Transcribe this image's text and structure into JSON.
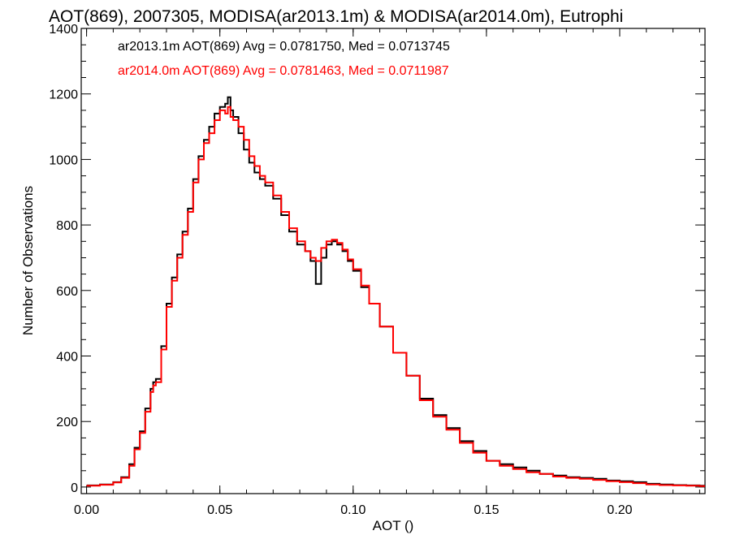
{
  "chart_data": {
    "type": "line",
    "step": true,
    "title": "AOT(869), 2007305, MODISA(ar2013.1m) & MODISA(ar2014.0m), Eutrophi",
    "xlabel": "AOT ()",
    "ylabel": "Number of Observations",
    "xlim": [
      -0.002,
      0.232
    ],
    "ylim": [
      -20,
      1400
    ],
    "xticks": [
      0.0,
      0.05,
      0.1,
      0.15,
      0.2
    ],
    "xtick_labels": [
      "0.00",
      "0.05",
      "0.10",
      "0.15",
      "0.20"
    ],
    "yticks": [
      0,
      200,
      400,
      600,
      800,
      1000,
      1200,
      1400
    ],
    "ytick_labels": [
      "0",
      "200",
      "400",
      "600",
      "800",
      "1000",
      "1200",
      "1400"
    ],
    "grid": false,
    "legend": "top-left",
    "series": [
      {
        "name": "ar2013.1m AOT(869) Avg = 0.0781750, Med = 0.0713745",
        "color": "#000000",
        "x": [
          0.0,
          0.005,
          0.01,
          0.013,
          0.016,
          0.018,
          0.02,
          0.022,
          0.024,
          0.025,
          0.026,
          0.028,
          0.03,
          0.032,
          0.034,
          0.036,
          0.038,
          0.04,
          0.042,
          0.044,
          0.046,
          0.048,
          0.05,
          0.052,
          0.053,
          0.054,
          0.055,
          0.057,
          0.059,
          0.061,
          0.063,
          0.065,
          0.067,
          0.07,
          0.073,
          0.076,
          0.079,
          0.082,
          0.084,
          0.086,
          0.088,
          0.09,
          0.092,
          0.094,
          0.096,
          0.098,
          0.1,
          0.103,
          0.106,
          0.11,
          0.115,
          0.12,
          0.125,
          0.13,
          0.135,
          0.14,
          0.145,
          0.15,
          0.155,
          0.16,
          0.165,
          0.17,
          0.175,
          0.18,
          0.185,
          0.19,
          0.195,
          0.2,
          0.205,
          0.21,
          0.215,
          0.22,
          0.225,
          0.23
        ],
        "y": [
          5,
          8,
          15,
          30,
          70,
          120,
          170,
          240,
          300,
          320,
          330,
          430,
          560,
          640,
          710,
          780,
          850,
          940,
          1010,
          1060,
          1100,
          1140,
          1160,
          1170,
          1190,
          1150,
          1130,
          1080,
          1030,
          990,
          960,
          940,
          920,
          880,
          830,
          780,
          740,
          720,
          690,
          620,
          700,
          740,
          750,
          740,
          720,
          690,
          660,
          610,
          560,
          490,
          410,
          340,
          270,
          220,
          180,
          140,
          110,
          80,
          70,
          60,
          50,
          40,
          35,
          30,
          28,
          25,
          20,
          18,
          15,
          10,
          8,
          6,
          5,
          4
        ]
      },
      {
        "name": "ar2014.0m AOT(869) Avg = 0.0781463, Med = 0.0711987",
        "color": "#ff0000",
        "x": [
          0.0,
          0.005,
          0.01,
          0.013,
          0.016,
          0.018,
          0.02,
          0.022,
          0.024,
          0.025,
          0.026,
          0.028,
          0.03,
          0.032,
          0.034,
          0.036,
          0.038,
          0.04,
          0.042,
          0.044,
          0.046,
          0.048,
          0.05,
          0.052,
          0.053,
          0.054,
          0.055,
          0.057,
          0.059,
          0.061,
          0.063,
          0.065,
          0.067,
          0.07,
          0.073,
          0.076,
          0.079,
          0.082,
          0.084,
          0.086,
          0.088,
          0.09,
          0.092,
          0.094,
          0.096,
          0.098,
          0.1,
          0.103,
          0.106,
          0.11,
          0.115,
          0.12,
          0.125,
          0.13,
          0.135,
          0.14,
          0.145,
          0.15,
          0.155,
          0.16,
          0.165,
          0.17,
          0.175,
          0.18,
          0.185,
          0.19,
          0.195,
          0.2,
          0.205,
          0.21,
          0.215,
          0.22,
          0.225,
          0.23
        ],
        "y": [
          4,
          7,
          14,
          28,
          65,
          115,
          165,
          230,
          290,
          310,
          320,
          420,
          550,
          630,
          700,
          770,
          840,
          930,
          1000,
          1050,
          1080,
          1120,
          1150,
          1140,
          1160,
          1130,
          1120,
          1100,
          1060,
          1010,
          980,
          950,
          930,
          890,
          840,
          790,
          750,
          720,
          700,
          690,
          730,
          750,
          755,
          745,
          725,
          695,
          665,
          615,
          560,
          490,
          410,
          340,
          265,
          215,
          175,
          135,
          105,
          80,
          65,
          55,
          45,
          40,
          32,
          28,
          25,
          22,
          18,
          15,
          12,
          8,
          6,
          5,
          4,
          3
        ]
      }
    ]
  }
}
